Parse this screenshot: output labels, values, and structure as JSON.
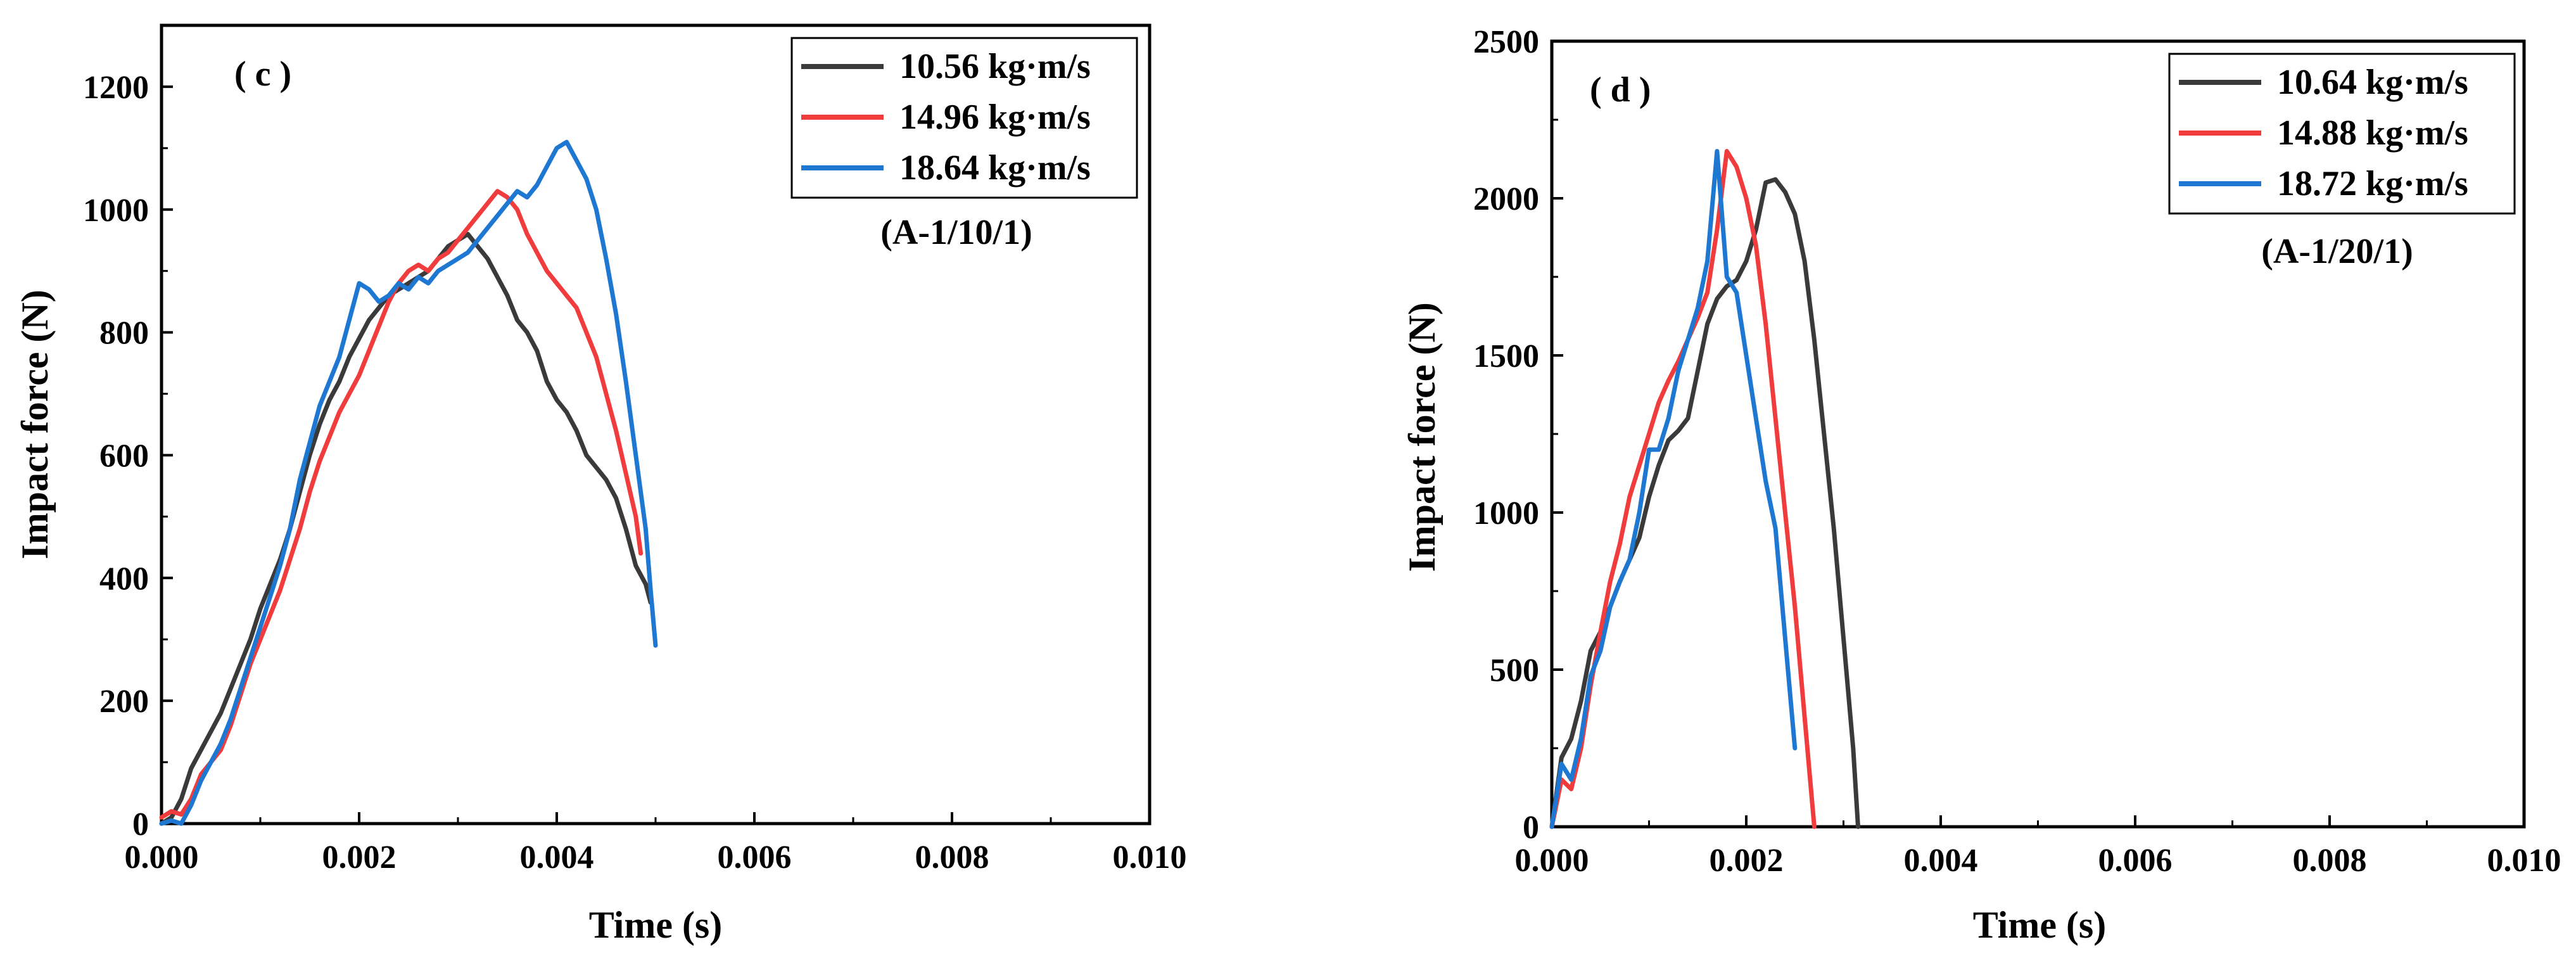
{
  "chart_data": [
    {
      "type": "line",
      "panel_label": "( c )",
      "annotation": "(A-1/10/1)",
      "xlabel": "Time (s)",
      "ylabel": "Impact force (N)",
      "xlim": [
        0,
        0.01
      ],
      "ylim": [
        0,
        1300
      ],
      "x_ticks": [
        0,
        0.002,
        0.004,
        0.006,
        0.008,
        0.01
      ],
      "x_tick_labels": [
        "0.000",
        "0.002",
        "0.004",
        "0.006",
        "0.008",
        "0.010"
      ],
      "y_ticks": [
        0,
        200,
        400,
        600,
        800,
        1000,
        1200
      ],
      "y_tick_labels": [
        "0",
        "200",
        "400",
        "600",
        "800",
        "1000",
        "1200"
      ],
      "legend_position": "top-right",
      "grid": false,
      "series": [
        {
          "name": "10.56 kg·m/s",
          "color": "#3a3a3a",
          "points": [
            [
              0,
              0
            ],
            [
              0.0001,
              10
            ],
            [
              0.0002,
              40
            ],
            [
              0.0003,
              90
            ],
            [
              0.0004,
              120
            ],
            [
              0.0005,
              150
            ],
            [
              0.0006,
              180
            ],
            [
              0.0007,
              220
            ],
            [
              0.0008,
              260
            ],
            [
              0.0009,
              300
            ],
            [
              0.001,
              350
            ],
            [
              0.0011,
              390
            ],
            [
              0.0012,
              430
            ],
            [
              0.0013,
              480
            ],
            [
              0.0014,
              540
            ],
            [
              0.0015,
              600
            ],
            [
              0.0016,
              650
            ],
            [
              0.0017,
              690
            ],
            [
              0.0018,
              720
            ],
            [
              0.0019,
              760
            ],
            [
              0.002,
              790
            ],
            [
              0.0021,
              820
            ],
            [
              0.0022,
              840
            ],
            [
              0.0023,
              860
            ],
            [
              0.0024,
              870
            ],
            [
              0.0025,
              880
            ],
            [
              0.0026,
              890
            ],
            [
              0.0027,
              900
            ],
            [
              0.0028,
              920
            ],
            [
              0.0029,
              940
            ],
            [
              0.003,
              950
            ],
            [
              0.0031,
              960
            ],
            [
              0.0032,
              940
            ],
            [
              0.0033,
              920
            ],
            [
              0.0034,
              890
            ],
            [
              0.0035,
              860
            ],
            [
              0.0036,
              820
            ],
            [
              0.0037,
              800
            ],
            [
              0.0038,
              770
            ],
            [
              0.0039,
              720
            ],
            [
              0.004,
              690
            ],
            [
              0.0041,
              670
            ],
            [
              0.0042,
              640
            ],
            [
              0.0043,
              600
            ],
            [
              0.0044,
              580
            ],
            [
              0.0045,
              560
            ],
            [
              0.0046,
              530
            ],
            [
              0.0047,
              480
            ],
            [
              0.0048,
              420
            ],
            [
              0.0049,
              390
            ],
            [
              0.00495,
              360
            ]
          ]
        },
        {
          "name": "14.96 kg·m/s",
          "color": "#f03c3c",
          "points": [
            [
              0,
              10
            ],
            [
              0.0001,
              20
            ],
            [
              0.0002,
              15
            ],
            [
              0.0003,
              40
            ],
            [
              0.0004,
              80
            ],
            [
              0.0005,
              100
            ],
            [
              0.0006,
              120
            ],
            [
              0.0007,
              160
            ],
            [
              0.0008,
              210
            ],
            [
              0.0009,
              260
            ],
            [
              0.001,
              300
            ],
            [
              0.0011,
              340
            ],
            [
              0.0012,
              380
            ],
            [
              0.0013,
              430
            ],
            [
              0.0014,
              480
            ],
            [
              0.0015,
              540
            ],
            [
              0.0016,
              590
            ],
            [
              0.0017,
              630
            ],
            [
              0.0018,
              670
            ],
            [
              0.0019,
              700
            ],
            [
              0.002,
              730
            ],
            [
              0.0021,
              770
            ],
            [
              0.0022,
              810
            ],
            [
              0.0023,
              850
            ],
            [
              0.0024,
              880
            ],
            [
              0.0025,
              900
            ],
            [
              0.0026,
              910
            ],
            [
              0.0027,
              900
            ],
            [
              0.0028,
              920
            ],
            [
              0.0029,
              930
            ],
            [
              0.003,
              950
            ],
            [
              0.0031,
              970
            ],
            [
              0.0032,
              990
            ],
            [
              0.0033,
              1010
            ],
            [
              0.0034,
              1030
            ],
            [
              0.0035,
              1020
            ],
            [
              0.0036,
              1000
            ],
            [
              0.0037,
              960
            ],
            [
              0.0038,
              930
            ],
            [
              0.0039,
              900
            ],
            [
              0.004,
              880
            ],
            [
              0.0041,
              860
            ],
            [
              0.0042,
              840
            ],
            [
              0.0043,
              800
            ],
            [
              0.0044,
              760
            ],
            [
              0.0045,
              700
            ],
            [
              0.0046,
              640
            ],
            [
              0.0047,
              570
            ],
            [
              0.0048,
              500
            ],
            [
              0.00485,
              440
            ]
          ]
        },
        {
          "name": "18.64 kg·m/s",
          "color": "#1e78d2",
          "points": [
            [
              0,
              0
            ],
            [
              0.0001,
              5
            ],
            [
              0.0002,
              0
            ],
            [
              0.0003,
              30
            ],
            [
              0.0004,
              70
            ],
            [
              0.0005,
              100
            ],
            [
              0.0006,
              130
            ],
            [
              0.0007,
              170
            ],
            [
              0.0008,
              220
            ],
            [
              0.0009,
              270
            ],
            [
              0.001,
              320
            ],
            [
              0.0011,
              370
            ],
            [
              0.0012,
              420
            ],
            [
              0.0013,
              480
            ],
            [
              0.0014,
              560
            ],
            [
              0.0015,
              620
            ],
            [
              0.0016,
              680
            ],
            [
              0.0017,
              720
            ],
            [
              0.0018,
              760
            ],
            [
              0.0019,
              820
            ],
            [
              0.002,
              880
            ],
            [
              0.0021,
              870
            ],
            [
              0.0022,
              850
            ],
            [
              0.0023,
              860
            ],
            [
              0.0024,
              880
            ],
            [
              0.0025,
              870
            ],
            [
              0.0026,
              890
            ],
            [
              0.0027,
              880
            ],
            [
              0.0028,
              900
            ],
            [
              0.0029,
              910
            ],
            [
              0.003,
              920
            ],
            [
              0.0031,
              930
            ],
            [
              0.0032,
              950
            ],
            [
              0.0033,
              970
            ],
            [
              0.0034,
              990
            ],
            [
              0.0035,
              1010
            ],
            [
              0.0036,
              1030
            ],
            [
              0.0037,
              1020
            ],
            [
              0.0038,
              1040
            ],
            [
              0.0039,
              1070
            ],
            [
              0.004,
              1100
            ],
            [
              0.0041,
              1110
            ],
            [
              0.0042,
              1080
            ],
            [
              0.0043,
              1050
            ],
            [
              0.0044,
              1000
            ],
            [
              0.0045,
              920
            ],
            [
              0.0046,
              830
            ],
            [
              0.0047,
              720
            ],
            [
              0.0048,
              600
            ],
            [
              0.0049,
              480
            ],
            [
              0.00495,
              380
            ],
            [
              0.005,
              290
            ]
          ]
        }
      ]
    },
    {
      "type": "line",
      "panel_label": "( d )",
      "annotation": "(A-1/20/1)",
      "xlabel": "Time (s)",
      "ylabel": "Impact force (N)",
      "xlim": [
        0,
        0.01
      ],
      "ylim": [
        0,
        2500
      ],
      "x_ticks": [
        0,
        0.002,
        0.004,
        0.006,
        0.008,
        0.01
      ],
      "x_tick_labels": [
        "0.000",
        "0.002",
        "0.004",
        "0.006",
        "0.008",
        "0.010"
      ],
      "y_ticks": [
        0,
        500,
        1000,
        1500,
        2000,
        2500
      ],
      "y_tick_labels": [
        "0",
        "500",
        "1000",
        "1500",
        "2000",
        "2500"
      ],
      "legend_position": "top-right",
      "grid": false,
      "series": [
        {
          "name": "10.64 kg·m/s",
          "color": "#3a3a3a",
          "points": [
            [
              0,
              0
            ],
            [
              0.0001,
              220
            ],
            [
              0.0002,
              280
            ],
            [
              0.0003,
              400
            ],
            [
              0.0004,
              560
            ],
            [
              0.0005,
              620
            ],
            [
              0.0006,
              700
            ],
            [
              0.0007,
              780
            ],
            [
              0.0008,
              850
            ],
            [
              0.0009,
              920
            ],
            [
              0.001,
              1050
            ],
            [
              0.0011,
              1150
            ],
            [
              0.0012,
              1230
            ],
            [
              0.0013,
              1260
            ],
            [
              0.0014,
              1300
            ],
            [
              0.0015,
              1450
            ],
            [
              0.0016,
              1600
            ],
            [
              0.0017,
              1680
            ],
            [
              0.0018,
              1720
            ],
            [
              0.0019,
              1740
            ],
            [
              0.002,
              1800
            ],
            [
              0.0021,
              1900
            ],
            [
              0.0022,
              2050
            ],
            [
              0.0023,
              2060
            ],
            [
              0.0024,
              2020
            ],
            [
              0.0025,
              1950
            ],
            [
              0.0026,
              1800
            ],
            [
              0.0027,
              1550
            ],
            [
              0.0028,
              1250
            ],
            [
              0.0029,
              950
            ],
            [
              0.003,
              600
            ],
            [
              0.0031,
              250
            ],
            [
              0.00315,
              0
            ]
          ]
        },
        {
          "name": "14.88 kg·m/s",
          "color": "#f03c3c",
          "points": [
            [
              0,
              0
            ],
            [
              0.0001,
              150
            ],
            [
              0.0002,
              120
            ],
            [
              0.0003,
              250
            ],
            [
              0.0004,
              450
            ],
            [
              0.0005,
              620
            ],
            [
              0.0006,
              780
            ],
            [
              0.0007,
              900
            ],
            [
              0.0008,
              1050
            ],
            [
              0.0009,
              1150
            ],
            [
              0.001,
              1250
            ],
            [
              0.0011,
              1350
            ],
            [
              0.0012,
              1420
            ],
            [
              0.0013,
              1480
            ],
            [
              0.0014,
              1550
            ],
            [
              0.0015,
              1620
            ],
            [
              0.0016,
              1700
            ],
            [
              0.0017,
              1900
            ],
            [
              0.0018,
              2150
            ],
            [
              0.0019,
              2100
            ],
            [
              0.002,
              2000
            ],
            [
              0.0021,
              1850
            ],
            [
              0.0022,
              1600
            ],
            [
              0.0023,
              1300
            ],
            [
              0.0024,
              1000
            ],
            [
              0.0025,
              700
            ],
            [
              0.0026,
              350
            ],
            [
              0.0027,
              0
            ]
          ]
        },
        {
          "name": "18.72 kg·m/s",
          "color": "#1e78d2",
          "points": [
            [
              0,
              0
            ],
            [
              0.0001,
              200
            ],
            [
              0.0002,
              150
            ],
            [
              0.0003,
              280
            ],
            [
              0.0004,
              480
            ],
            [
              0.0005,
              560
            ],
            [
              0.0006,
              700
            ],
            [
              0.0007,
              780
            ],
            [
              0.0008,
              850
            ],
            [
              0.0009,
              1000
            ],
            [
              0.001,
              1200
            ],
            [
              0.0011,
              1200
            ],
            [
              0.0012,
              1300
            ],
            [
              0.0013,
              1450
            ],
            [
              0.0014,
              1550
            ],
            [
              0.0015,
              1650
            ],
            [
              0.0016,
              1800
            ],
            [
              0.0017,
              2150
            ],
            [
              0.0018,
              1750
            ],
            [
              0.0019,
              1700
            ],
            [
              0.002,
              1500
            ],
            [
              0.0021,
              1300
            ],
            [
              0.0022,
              1100
            ],
            [
              0.0023,
              950
            ],
            [
              0.0024,
              600
            ],
            [
              0.0025,
              250
            ]
          ]
        }
      ]
    }
  ]
}
